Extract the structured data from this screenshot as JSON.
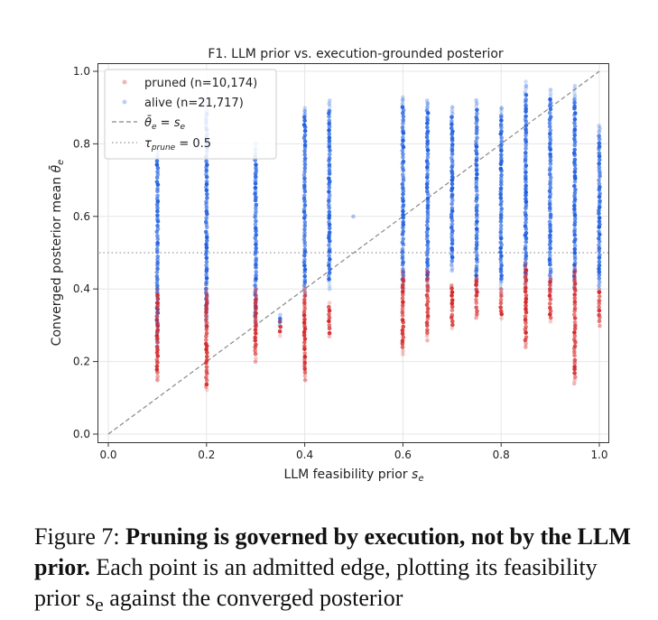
{
  "chart_data": {
    "type": "scatter",
    "title": "F1. LLM prior vs. execution-grounded posterior",
    "xlabel": "LLM feasibility prior s_e",
    "ylabel": "Converged posterior mean θ̄_e",
    "xlim": [
      0,
      1
    ],
    "ylim": [
      0,
      1
    ],
    "xticks": [
      "0.0",
      "0.2",
      "0.4",
      "0.6",
      "0.8",
      "1.0"
    ],
    "yticks": [
      "0.0",
      "0.2",
      "0.4",
      "0.6",
      "0.8",
      "1.0"
    ],
    "grid": true,
    "legend_position": "top-left",
    "legend": [
      {
        "label": "pruned (n=10,174)"
      },
      {
        "label": "alive (n=21,717)"
      },
      {
        "label": "θ̄e = se"
      },
      {
        "label": "τprune = 0.5"
      }
    ],
    "threshold": 0.5,
    "colors": {
      "pruned": "#d62728",
      "alive": "#1f5fe0",
      "diagonal": "#888888",
      "threshold": "#999999"
    },
    "series": [
      {
        "name": "pruned (n=10,174)",
        "columns": [
          {
            "x": 0.1,
            "ymin": 0.15,
            "ymax": 0.4
          },
          {
            "x": 0.2,
            "ymin": 0.12,
            "ymax": 0.4
          },
          {
            "x": 0.3,
            "ymin": 0.2,
            "ymax": 0.4
          },
          {
            "x": 0.35,
            "ymin": 0.27,
            "ymax": 0.31
          },
          {
            "x": 0.4,
            "ymin": 0.15,
            "ymax": 0.4
          },
          {
            "x": 0.45,
            "ymin": 0.27,
            "ymax": 0.36
          },
          {
            "x": 0.6,
            "ymin": 0.22,
            "ymax": 0.45
          },
          {
            "x": 0.65,
            "ymin": 0.26,
            "ymax": 0.45
          },
          {
            "x": 0.7,
            "ymin": 0.29,
            "ymax": 0.41
          },
          {
            "x": 0.75,
            "ymin": 0.32,
            "ymax": 0.43
          },
          {
            "x": 0.8,
            "ymin": 0.32,
            "ymax": 0.4
          },
          {
            "x": 0.85,
            "ymin": 0.24,
            "ymax": 0.47
          },
          {
            "x": 0.9,
            "ymin": 0.31,
            "ymax": 0.43
          },
          {
            "x": 0.95,
            "ymin": 0.14,
            "ymax": 0.46
          },
          {
            "x": 1.0,
            "ymin": 0.3,
            "ymax": 0.4
          }
        ]
      },
      {
        "name": "alive (n=21,717)",
        "columns": [
          {
            "x": 0.1,
            "ymin": 0.24,
            "ymax": 0.78
          },
          {
            "x": 0.2,
            "ymin": 0.3,
            "ymax": 0.92
          },
          {
            "x": 0.3,
            "ymin": 0.3,
            "ymax": 0.8
          },
          {
            "x": 0.35,
            "ymin": 0.3,
            "ymax": 0.33
          },
          {
            "x": 0.4,
            "ymin": 0.38,
            "ymax": 0.9
          },
          {
            "x": 0.45,
            "ymin": 0.4,
            "ymax": 0.92
          },
          {
            "x": 0.5,
            "ymin": 0.6,
            "ymax": 0.6
          },
          {
            "x": 0.6,
            "ymin": 0.4,
            "ymax": 0.93
          },
          {
            "x": 0.65,
            "ymin": 0.4,
            "ymax": 0.92
          },
          {
            "x": 0.7,
            "ymin": 0.45,
            "ymax": 0.9
          },
          {
            "x": 0.75,
            "ymin": 0.4,
            "ymax": 0.92
          },
          {
            "x": 0.8,
            "ymin": 0.4,
            "ymax": 0.9
          },
          {
            "x": 0.85,
            "ymin": 0.4,
            "ymax": 0.97
          },
          {
            "x": 0.9,
            "ymin": 0.4,
            "ymax": 0.95
          },
          {
            "x": 0.95,
            "ymin": 0.4,
            "ymax": 0.96
          },
          {
            "x": 1.0,
            "ymin": 0.4,
            "ymax": 0.85
          }
        ]
      }
    ]
  },
  "caption": {
    "prefix": "Figure 7: ",
    "bold": "Pruning is governed by execution, not by the LLM prior.",
    "rest": " Each point is an admitted edge, plotting its feasibility prior s",
    "rest_sub": "e",
    "rest_tail": " against the converged posterior"
  }
}
